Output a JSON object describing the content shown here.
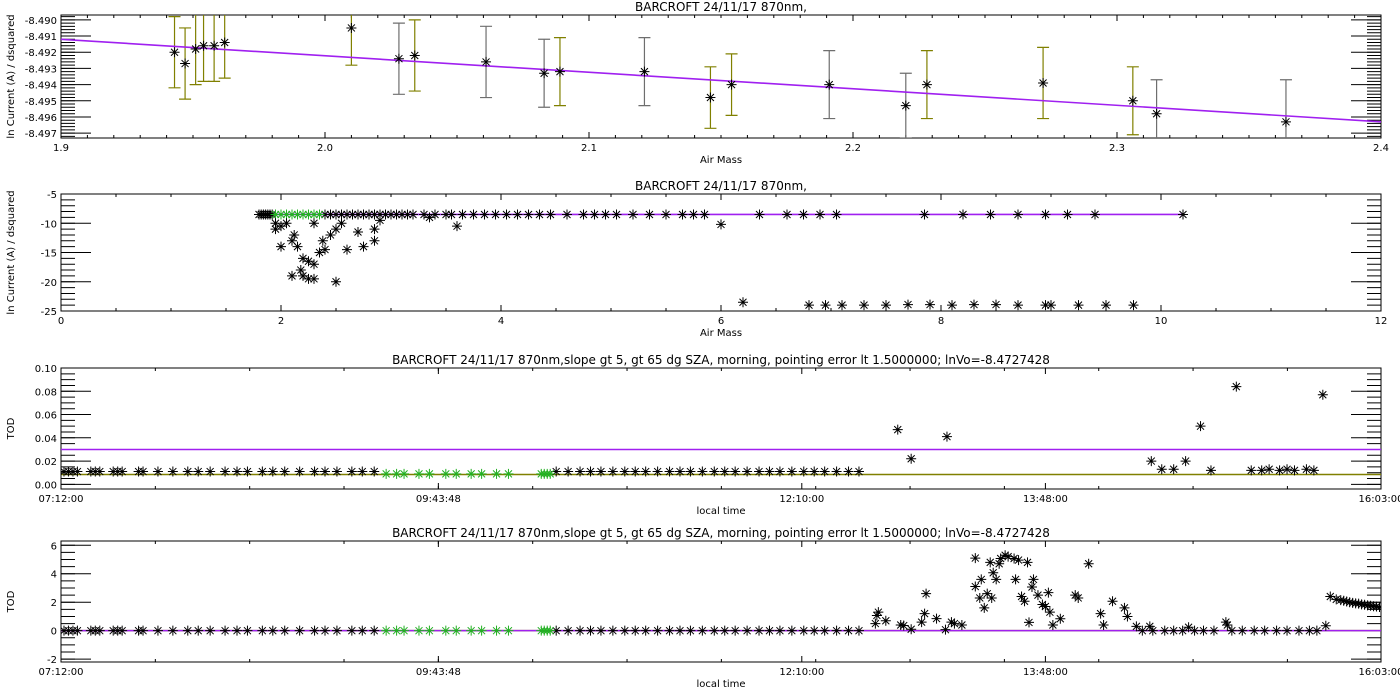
{
  "colors": {
    "fit_line": "#a020f0",
    "error_bar": "#808000",
    "error_bar_alt": "#6e6e6e",
    "baseline": "#808000",
    "highlight": "#22b022",
    "marker": "#000000"
  },
  "chart_data": [
    {
      "type": "scatter",
      "title": "BARCROFT 24/11/17 870nm,",
      "xlabel": "Air Mass",
      "ylabel": "ln Current (A) / dsquared",
      "xlim": [
        1.9,
        2.4
      ],
      "ylim": [
        -8.4973,
        -8.4897
      ],
      "xticks": [
        {
          "v": 1.9,
          "label": "1.9"
        },
        {
          "v": 2.0,
          "label": "2.0"
        },
        {
          "v": 2.1,
          "label": "2.1"
        },
        {
          "v": 2.2,
          "label": "2.2"
        },
        {
          "v": 2.3,
          "label": "2.3"
        },
        {
          "v": 2.4,
          "label": "2.4"
        }
      ],
      "yticks": [
        {
          "v": -8.49,
          "label": "-8.490"
        },
        {
          "v": -8.491,
          "label": "-8.491"
        },
        {
          "v": -8.492,
          "label": "-8.492"
        },
        {
          "v": -8.493,
          "label": "-8.493"
        },
        {
          "v": -8.494,
          "label": "-8.494"
        },
        {
          "v": -8.495,
          "label": "-8.495"
        },
        {
          "v": -8.496,
          "label": "-8.496"
        },
        {
          "v": -8.497,
          "label": "-8.497"
        }
      ],
      "fit_line": [
        [
          1.9,
          -8.4912
        ],
        [
          2.4,
          -8.4963
        ]
      ],
      "points_with_error": [
        [
          1.943,
          -8.492,
          0.0022,
          0
        ],
        [
          1.947,
          -8.4927,
          0.0022,
          0
        ],
        [
          1.951,
          -8.4918,
          0.0022,
          0
        ],
        [
          1.954,
          -8.4916,
          0.0022,
          0
        ],
        [
          1.958,
          -8.4916,
          0.0022,
          0
        ],
        [
          1.962,
          -8.4914,
          0.0022,
          0
        ],
        [
          2.01,
          -8.4905,
          0.0023,
          0
        ],
        [
          2.028,
          -8.4924,
          0.0022,
          1
        ],
        [
          2.034,
          -8.4922,
          0.0022,
          0
        ],
        [
          2.061,
          -8.4926,
          0.0022,
          1
        ],
        [
          2.083,
          -8.4933,
          0.0021,
          1
        ],
        [
          2.089,
          -8.4932,
          0.0021,
          0
        ],
        [
          2.121,
          -8.4932,
          0.0021,
          1
        ],
        [
          2.146,
          -8.4948,
          0.0019,
          0
        ],
        [
          2.154,
          -8.494,
          0.0019,
          0
        ],
        [
          2.191,
          -8.494,
          0.0021,
          1
        ],
        [
          2.22,
          -8.4953,
          0.002,
          1
        ],
        [
          2.228,
          -8.494,
          0.0021,
          0
        ],
        [
          2.272,
          -8.4939,
          0.0022,
          0
        ],
        [
          2.306,
          -8.495,
          0.0021,
          0
        ],
        [
          2.315,
          -8.4958,
          0.0021,
          1
        ],
        [
          2.364,
          -8.4963,
          0.0026,
          1
        ]
      ]
    },
    {
      "type": "scatter",
      "title": "BARCROFT 24/11/17 870nm,",
      "xlabel": "Air Mass",
      "ylabel": "ln Current (A) / dsquared",
      "xlim": [
        0,
        12
      ],
      "ylim": [
        -25,
        -5
      ],
      "xticks": [
        {
          "v": 0,
          "label": "0"
        },
        {
          "v": 2,
          "label": "2"
        },
        {
          "v": 4,
          "label": "4"
        },
        {
          "v": 6,
          "label": "6"
        },
        {
          "v": 8,
          "label": "8"
        },
        {
          "v": 10,
          "label": "10"
        },
        {
          "v": 12,
          "label": "12"
        }
      ],
      "yticks": [
        {
          "v": -5,
          "label": "-5"
        },
        {
          "v": -10,
          "label": "-10"
        },
        {
          "v": -15,
          "label": "-15"
        },
        {
          "v": -20,
          "label": "-20"
        },
        {
          "v": -25,
          "label": "-25"
        }
      ],
      "fit_line": [
        [
          1.9,
          -8.5
        ],
        [
          10.2,
          -8.5
        ]
      ],
      "row": {
        "y": -8.5,
        "x": [
          1.8,
          1.82,
          1.84,
          1.86,
          1.88,
          1.9,
          1.92,
          2.4,
          2.45,
          2.5,
          2.55,
          2.6,
          2.65,
          2.7,
          2.75,
          2.8,
          2.85,
          2.9,
          2.95,
          3.0,
          3.05,
          3.1,
          3.15,
          3.2,
          3.3,
          3.4,
          3.5,
          3.55,
          3.65,
          3.75,
          3.85,
          3.95,
          4.05,
          4.15,
          4.25,
          4.35,
          4.45,
          4.6,
          4.75,
          4.85,
          4.95,
          5.05,
          5.2,
          5.35,
          5.5,
          5.65,
          5.75,
          5.85,
          6.35,
          6.6,
          6.75,
          6.9,
          7.05,
          7.85,
          8.2,
          8.45,
          8.7,
          8.95,
          9.15,
          9.4,
          10.2
        ]
      },
      "highlight_row": {
        "y": -8.5,
        "x": [
          1.95,
          2.0,
          2.05,
          2.1,
          2.15,
          2.2,
          2.25,
          2.3,
          2.35
        ]
      },
      "points": [
        [
          1.95,
          -10.0
        ],
        [
          1.95,
          -11.0
        ],
        [
          2.0,
          -10.5
        ],
        [
          2.05,
          -10.0
        ],
        [
          2.0,
          -14.0
        ],
        [
          2.1,
          -13.0
        ],
        [
          2.12,
          -12.0
        ],
        [
          2.15,
          -14.0
        ],
        [
          2.2,
          -16.0
        ],
        [
          2.18,
          -18.0
        ],
        [
          2.2,
          -19.0
        ],
        [
          2.1,
          -19.0
        ],
        [
          2.25,
          -19.5
        ],
        [
          2.3,
          -19.5
        ],
        [
          2.25,
          -16.5
        ],
        [
          2.3,
          -17.0
        ],
        [
          2.35,
          -15.0
        ],
        [
          2.4,
          -14.5
        ],
        [
          2.38,
          -13.0
        ],
        [
          2.45,
          -12.0
        ],
        [
          2.5,
          -11.0
        ],
        [
          2.3,
          -10.0
        ],
        [
          2.55,
          -10.0
        ],
        [
          2.6,
          -14.5
        ],
        [
          2.5,
          -20.0
        ],
        [
          2.75,
          -14.0
        ],
        [
          2.7,
          -11.5
        ],
        [
          2.85,
          -11.0
        ],
        [
          2.85,
          -13.0
        ],
        [
          2.9,
          -9.5
        ],
        [
          3.6,
          -10.5
        ],
        [
          3.35,
          -9.0
        ],
        [
          6.0,
          -10.2
        ],
        [
          6.2,
          -23.5
        ],
        [
          6.8,
          -24
        ],
        [
          6.95,
          -24
        ],
        [
          7.1,
          -24
        ],
        [
          7.3,
          -24
        ],
        [
          7.5,
          -24
        ],
        [
          7.7,
          -23.9
        ],
        [
          7.9,
          -23.9
        ],
        [
          8.1,
          -24
        ],
        [
          8.3,
          -23.9
        ],
        [
          8.5,
          -23.9
        ],
        [
          8.7,
          -24
        ],
        [
          8.95,
          -24
        ],
        [
          9.0,
          -24
        ],
        [
          9.25,
          -24
        ],
        [
          9.5,
          -24
        ],
        [
          9.75,
          -24
        ]
      ]
    },
    {
      "type": "scatter",
      "title": "BARCROFT 24/11/17 870nm,slope gt 5, gt 65 dg SZA, morning, pointing error lt 1.5000000; lnVo=-8.4727428",
      "xlabel": "local time",
      "ylabel": "TOD",
      "xlim": [
        7.2,
        16.05
      ],
      "ylim": [
        -0.004,
        0.1
      ],
      "xticks": [
        {
          "v": 7.2,
          "label": "07:12:00"
        },
        {
          "v": 9.73,
          "label": "09:43:48"
        },
        {
          "v": 12.1667,
          "label": "12:10:00"
        },
        {
          "v": 13.8,
          "label": "13:48:00"
        },
        {
          "v": 16.05,
          "label": "16:03:00"
        }
      ],
      "yticks": [
        {
          "v": 0.0,
          "label": "0.00"
        },
        {
          "v": 0.02,
          "label": "0.02"
        },
        {
          "v": 0.04,
          "label": "0.04"
        },
        {
          "v": 0.06,
          "label": "0.06"
        },
        {
          "v": 0.08,
          "label": "0.08"
        },
        {
          "v": 0.1,
          "label": "0.10"
        }
      ],
      "hlines": [
        {
          "y": 0.03,
          "color": "#a020f0"
        },
        {
          "y": 0.0085,
          "color": "#808000"
        }
      ],
      "row": {
        "y": 0.011,
        "x": [
          7.22,
          7.25,
          7.28,
          7.31,
          7.4,
          7.43,
          7.46,
          7.55,
          7.58,
          7.61,
          7.72,
          7.75,
          7.85,
          7.95,
          8.05,
          8.12,
          8.2,
          8.3,
          8.38,
          8.45,
          8.55,
          8.62,
          8.7,
          8.8,
          8.9,
          8.97,
          9.05,
          9.15,
          9.22,
          9.3,
          10.52,
          10.6,
          10.68,
          10.75,
          10.82,
          10.9,
          10.98,
          11.05,
          11.12,
          11.2,
          11.28,
          11.35,
          11.42,
          11.5,
          11.58,
          11.65,
          11.72,
          11.8,
          11.88,
          11.95,
          12.02,
          12.1,
          12.18,
          12.25,
          12.32,
          12.4,
          12.48,
          12.55
        ]
      },
      "highlight_row": {
        "y": 0.009,
        "x": [
          9.38,
          9.45,
          9.5,
          9.6,
          9.67,
          9.78,
          9.85,
          9.95,
          10.02,
          10.12,
          10.2,
          10.42,
          10.44,
          10.46,
          10.48
        ]
      },
      "points": [
        [
          12.81,
          0.047
        ],
        [
          12.9,
          0.022
        ],
        [
          13.14,
          0.041
        ],
        [
          14.51,
          0.02
        ],
        [
          14.58,
          0.013
        ],
        [
          14.66,
          0.013
        ],
        [
          14.74,
          0.02
        ],
        [
          14.84,
          0.05
        ],
        [
          14.91,
          0.012
        ],
        [
          15.08,
          0.084
        ],
        [
          15.18,
          0.012
        ],
        [
          15.25,
          0.012
        ],
        [
          15.3,
          0.013
        ],
        [
          15.37,
          0.012
        ],
        [
          15.42,
          0.013
        ],
        [
          15.47,
          0.012
        ],
        [
          15.55,
          0.013
        ],
        [
          15.6,
          0.012
        ],
        [
          15.66,
          0.077
        ]
      ]
    },
    {
      "type": "scatter",
      "title": "BARCROFT 24/11/17 870nm,slope gt 5, gt 65 dg SZA, morning, pointing error lt 1.5000000; lnVo=-8.4727428",
      "xlabel": "local time",
      "ylabel": "TOD",
      "xlim": [
        7.2,
        16.05
      ],
      "ylim": [
        -2.2,
        6.3
      ],
      "xticks": [
        {
          "v": 7.2,
          "label": "07:12:00"
        },
        {
          "v": 9.73,
          "label": "09:43:48"
        },
        {
          "v": 12.1667,
          "label": "12:10:00"
        },
        {
          "v": 13.8,
          "label": "13:48:00"
        },
        {
          "v": 16.05,
          "label": "16:03:00"
        }
      ],
      "yticks": [
        {
          "v": -2,
          "label": "-2"
        },
        {
          "v": 0,
          "label": "0"
        },
        {
          "v": 2,
          "label": "2"
        },
        {
          "v": 4,
          "label": "4"
        },
        {
          "v": 6,
          "label": "6"
        }
      ],
      "hlines": [
        {
          "y": 0.0,
          "color": "#808000"
        },
        {
          "y": 0.0,
          "color": "#a020f0"
        }
      ],
      "row": {
        "y": 0.0,
        "x": [
          7.22,
          7.25,
          7.28,
          7.31,
          7.4,
          7.43,
          7.46,
          7.55,
          7.58,
          7.61,
          7.72,
          7.75,
          7.85,
          7.95,
          8.05,
          8.12,
          8.2,
          8.3,
          8.38,
          8.45,
          8.55,
          8.62,
          8.7,
          8.8,
          8.9,
          8.97,
          9.05,
          9.15,
          9.22,
          9.3,
          10.52,
          10.6,
          10.68,
          10.75,
          10.82,
          10.9,
          10.98,
          11.05,
          11.12,
          11.2,
          11.28,
          11.35,
          11.42,
          11.5,
          11.58,
          11.65,
          11.72,
          11.8,
          11.88,
          11.95,
          12.02,
          12.1,
          12.18,
          12.25,
          12.32,
          12.4,
          12.48,
          12.55,
          14.45,
          14.52,
          14.6,
          14.66,
          14.72,
          14.8,
          14.86,
          14.93,
          15.05,
          15.12,
          15.2,
          15.27,
          15.35,
          15.42,
          15.5,
          15.57,
          15.62
        ]
      },
      "highlight_row": {
        "y": 0.0,
        "x": [
          9.38,
          9.45,
          9.5,
          9.6,
          9.67,
          9.78,
          9.85,
          9.95,
          10.02,
          10.12,
          10.2,
          10.42,
          10.44,
          10.46,
          10.48
        ]
      },
      "points": [
        [
          12.66,
          0.5
        ],
        [
          12.67,
          1.07
        ],
        [
          12.68,
          1.3
        ],
        [
          12.73,
          0.7
        ],
        [
          12.83,
          0.4
        ],
        [
          12.85,
          0.36
        ],
        [
          12.9,
          0.1
        ],
        [
          12.97,
          0.6
        ],
        [
          12.99,
          1.2
        ],
        [
          13.0,
          2.6
        ],
        [
          13.07,
          0.85
        ],
        [
          13.13,
          0.07
        ],
        [
          13.17,
          0.6
        ],
        [
          13.19,
          0.5
        ],
        [
          13.24,
          0.4
        ],
        [
          13.33,
          3.1
        ],
        [
          13.33,
          5.1
        ],
        [
          13.36,
          2.3
        ],
        [
          13.37,
          3.6
        ],
        [
          13.39,
          1.6
        ],
        [
          13.41,
          2.6
        ],
        [
          13.43,
          4.8
        ],
        [
          13.44,
          2.3
        ],
        [
          13.45,
          4.07
        ],
        [
          13.47,
          3.6
        ],
        [
          13.49,
          4.7
        ],
        [
          13.5,
          5.07
        ],
        [
          13.53,
          5.3
        ],
        [
          13.55,
          5.2
        ],
        [
          13.59,
          5.07
        ],
        [
          13.62,
          4.96
        ],
        [
          13.68,
          4.8
        ],
        [
          13.6,
          3.6
        ],
        [
          13.64,
          2.4
        ],
        [
          13.66,
          2.07
        ],
        [
          13.69,
          0.58
        ],
        [
          13.71,
          3.07
        ],
        [
          13.72,
          3.6
        ],
        [
          13.75,
          2.5
        ],
        [
          13.78,
          1.84
        ],
        [
          13.8,
          1.7
        ],
        [
          13.82,
          2.67
        ],
        [
          13.83,
          1.3
        ],
        [
          13.85,
          0.4
        ],
        [
          13.9,
          0.84
        ],
        [
          14.0,
          2.5
        ],
        [
          14.02,
          2.3
        ],
        [
          14.09,
          4.7
        ],
        [
          14.17,
          1.2
        ],
        [
          14.19,
          0.4
        ],
        [
          14.25,
          2.07
        ],
        [
          14.33,
          1.6
        ],
        [
          14.35,
          1.0
        ],
        [
          14.41,
          0.3
        ],
        [
          14.5,
          0.3
        ],
        [
          14.76,
          0.24
        ],
        [
          15.01,
          0.6
        ],
        [
          15.02,
          0.4
        ],
        [
          15.68,
          0.35
        ],
        [
          15.71,
          2.4
        ],
        [
          15.75,
          2.2
        ],
        [
          15.78,
          2.15
        ],
        [
          15.8,
          2.1
        ],
        [
          15.82,
          2.05
        ],
        [
          15.84,
          2.0
        ],
        [
          15.86,
          1.95
        ],
        [
          15.88,
          1.92
        ],
        [
          15.9,
          1.9
        ],
        [
          15.92,
          1.85
        ],
        [
          15.94,
          1.82
        ],
        [
          15.96,
          1.78
        ],
        [
          15.98,
          1.75
        ],
        [
          16.0,
          1.72
        ],
        [
          16.02,
          1.7
        ],
        [
          16.04,
          1.66
        ]
      ]
    }
  ]
}
